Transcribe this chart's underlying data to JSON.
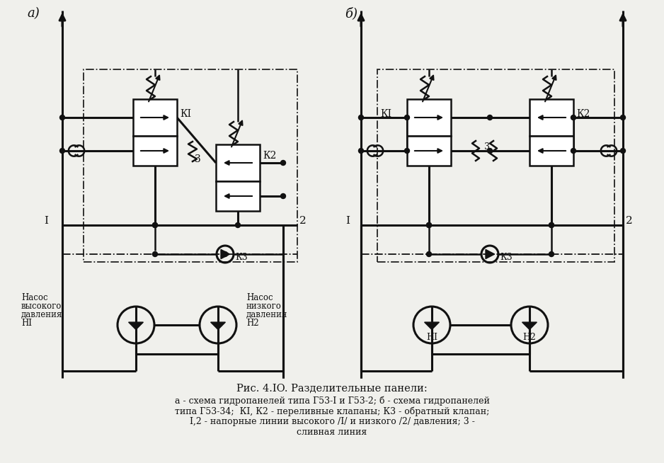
{
  "bg_color": "#f0f0ec",
  "lc": "#111111",
  "label_a": "а)",
  "label_b": "б)",
  "panel_a_k1": "КI",
  "panel_a_k2": "К2",
  "panel_a_k3": "К3",
  "panel_a_label_1": "I",
  "panel_a_label_2": "2",
  "panel_a_pump1_line1": "Насос",
  "panel_a_pump1_line2": "высокого",
  "panel_a_pump1_line3": "давления",
  "panel_a_pump1_line4": "НI",
  "panel_a_pump2_line1": "Насос",
  "panel_a_pump2_line2": "низкого",
  "panel_a_pump2_line3": "давления",
  "panel_a_pump2_line4": "Н2",
  "panel_b_k1": "КI",
  "panel_b_k2": "К2",
  "panel_b_k3": "К3",
  "panel_b_label_1": "I",
  "panel_b_label_2": "2",
  "panel_b_n1": "НI",
  "panel_b_n2": "Н2",
  "title": "Рис. 4.IO. Разделительные панели:",
  "cap1": "а - схема гидропанелей типа Г53-I и Г53-2; б - схема гидропанелей",
  "cap2": "типа Г53-34;  КI, К2 - переливные клапаны; К3 - обратный клапан;",
  "cap3": "I,2 - напорные линии высокого /I/ и низкого /2/ давления; 3 -",
  "cap4": "сливная линия"
}
